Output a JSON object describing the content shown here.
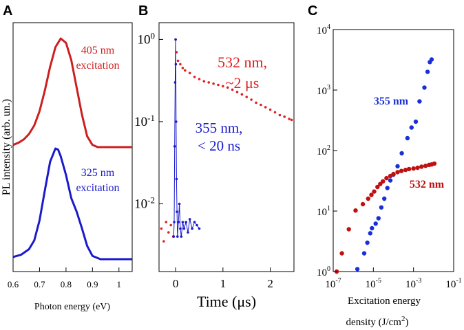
{
  "chart_data": [
    {
      "panel": "A",
      "type": "line",
      "title": "",
      "xlabel": "Photon energy (eV)",
      "ylabel": "PL intensity (arb. un.)",
      "xlim": [
        0.6,
        1.05
      ],
      "xticks": [
        "0.6",
        "0.7",
        "0.8",
        "0.9",
        "1"
      ],
      "series": [
        {
          "name": "405 nm excitation",
          "label_lines": [
            "405 nm",
            "excitation"
          ],
          "color": "#cc1f1f",
          "x": [
            0.6,
            0.62,
            0.64,
            0.66,
            0.68,
            0.7,
            0.72,
            0.74,
            0.76,
            0.78,
            0.8,
            0.82,
            0.84,
            0.86,
            0.88,
            0.9,
            0.92,
            0.95,
            1.0,
            1.05
          ],
          "y": [
            0.02,
            0.04,
            0.07,
            0.12,
            0.2,
            0.33,
            0.52,
            0.74,
            0.92,
            1.0,
            0.96,
            0.8,
            0.55,
            0.3,
            0.1,
            0.02,
            0.0,
            0.0,
            0.0,
            0.0
          ]
        },
        {
          "name": "325 nm excitation",
          "label_lines": [
            "325 nm",
            "excitation"
          ],
          "color": "#1a1acc",
          "x": [
            0.6,
            0.63,
            0.66,
            0.68,
            0.7,
            0.72,
            0.74,
            0.76,
            0.77,
            0.78,
            0.8,
            0.82,
            0.84,
            0.86,
            0.88,
            0.9,
            0.93,
            0.96,
            1.0,
            1.05
          ],
          "y": [
            0.02,
            0.04,
            0.09,
            0.17,
            0.35,
            0.62,
            0.88,
            1.0,
            0.99,
            0.93,
            0.76,
            0.55,
            0.43,
            0.28,
            0.12,
            0.03,
            0.0,
            0.0,
            0.0,
            0.0
          ]
        }
      ]
    },
    {
      "panel": "B",
      "type": "scatter",
      "title": "",
      "xlabel": "Time (μs)",
      "ylabel": "",
      "xlim": [
        -0.35,
        2.5
      ],
      "ylim": [
        0.0015,
        1.6
      ],
      "yscale": "log",
      "xticks": [
        "0",
        "1",
        "2"
      ],
      "yticks": [
        {
          "base": "10",
          "exp": "0"
        },
        {
          "base": "10",
          "exp": "-1"
        },
        {
          "base": "10",
          "exp": "-2"
        }
      ],
      "series": [
        {
          "name": "532 nm, ~2 μs",
          "label_lines": [
            "532 nm,",
            "~2 μs"
          ],
          "color": "#e02020",
          "x": [
            -0.3,
            -0.25,
            -0.2,
            -0.15,
            -0.1,
            -0.05,
            0.0,
            0.02,
            0.05,
            0.1,
            0.15,
            0.2,
            0.3,
            0.4,
            0.5,
            0.6,
            0.7,
            0.8,
            0.9,
            1.0,
            1.1,
            1.2,
            1.3,
            1.4,
            1.5,
            1.6,
            1.7,
            1.8,
            1.9,
            2.0,
            2.1,
            2.2,
            2.3,
            2.4,
            2.45
          ],
          "y": [
            0.005,
            0.0035,
            0.006,
            0.0045,
            0.0055,
            0.004,
            1.0,
            0.7,
            0.55,
            0.5,
            0.45,
            0.42,
            0.39,
            0.35,
            0.33,
            0.31,
            0.3,
            0.29,
            0.28,
            0.27,
            0.26,
            0.245,
            0.23,
            0.215,
            0.2,
            0.185,
            0.17,
            0.16,
            0.15,
            0.14,
            0.13,
            0.12,
            0.115,
            0.108,
            0.105
          ]
        },
        {
          "name": "355 nm, < 20 ns",
          "label_lines": [
            "355 nm,",
            "< 20 ns"
          ],
          "color": "#1a1acc",
          "x": [
            -0.04,
            -0.03,
            -0.02,
            -0.01,
            0.0,
            0.005,
            0.01,
            0.02,
            0.03,
            0.04,
            0.06,
            0.08,
            0.1,
            0.12,
            0.15,
            0.18,
            0.22,
            0.26,
            0.3,
            0.35,
            0.4,
            0.45,
            0.5
          ],
          "y": [
            0.004,
            0.006,
            0.05,
            0.3,
            1.0,
            0.5,
            0.1,
            0.02,
            0.008,
            0.004,
            0.006,
            0.01,
            0.005,
            0.004,
            0.006,
            0.005,
            0.006,
            0.0045,
            0.0065,
            0.005,
            0.006,
            0.0055,
            0.005
          ]
        }
      ]
    },
    {
      "panel": "C",
      "type": "scatter",
      "title": "",
      "xlabel_lines": [
        "Excitation energy",
        "density (J/cm",
        "2",
        ")"
      ],
      "ylabel": "",
      "xscale": "log",
      "yscale": "log",
      "xlim": [
        1e-07,
        0.1
      ],
      "ylim": [
        1,
        10000
      ],
      "xticks": [
        {
          "base": "10",
          "exp": "-7"
        },
        {
          "base": "10",
          "exp": "-5"
        },
        {
          "base": "10",
          "exp": "-3"
        },
        {
          "base": "10",
          "exp": "-1"
        }
      ],
      "yticks": [
        {
          "base": "10",
          "exp": "0"
        },
        {
          "base": "10",
          "exp": "1"
        },
        {
          "base": "10",
          "exp": "2"
        },
        {
          "base": "10",
          "exp": "3"
        },
        {
          "base": "10",
          "exp": "4"
        }
      ],
      "series": [
        {
          "name": "355 nm",
          "label": "355 nm",
          "color": "#1a2fd6",
          "x": [
            1.6e-06,
            3.5e-06,
            5e-06,
            7e-06,
            8.5e-06,
            1.3e-05,
            1.8e-05,
            2.5e-05,
            3.5e-05,
            5e-05,
            7e-05,
            0.0001,
            0.00016,
            0.00026,
            0.0005,
            0.0008,
            0.0013,
            0.002,
            0.0035,
            0.005,
            0.0065,
            0.008
          ],
          "y": [
            1.1,
            2.0,
            3.0,
            4.3,
            5.2,
            6.2,
            7.6,
            11.5,
            16,
            24,
            32,
            40,
            55,
            90,
            160,
            240,
            300,
            650,
            1100,
            2000,
            2900,
            3200
          ]
        },
        {
          "name": "532 nm",
          "label": "532 nm",
          "color": "#c01010",
          "x": [
            1.5e-07,
            2.7e-07,
            6e-07,
            1.3e-06,
            3e-06,
            5.5e-06,
            8e-06,
            1.1e-05,
            1.6e-05,
            2.2e-05,
            3e-05,
            4.5e-05,
            7e-05,
            0.0001,
            0.00016,
            0.00025,
            0.0004,
            0.0006,
            0.001,
            0.0016,
            0.0025,
            0.004,
            0.006,
            0.008,
            0.011
          ],
          "y": [
            1.0,
            2.0,
            5.0,
            10.2,
            13,
            16,
            18.5,
            21,
            25,
            28,
            31,
            35,
            38,
            41,
            44,
            46,
            48,
            49.5,
            50.5,
            52,
            54,
            56,
            58,
            59,
            61
          ]
        }
      ]
    }
  ],
  "panel_letters": {
    "A": "A",
    "B": "B",
    "C": "C"
  }
}
